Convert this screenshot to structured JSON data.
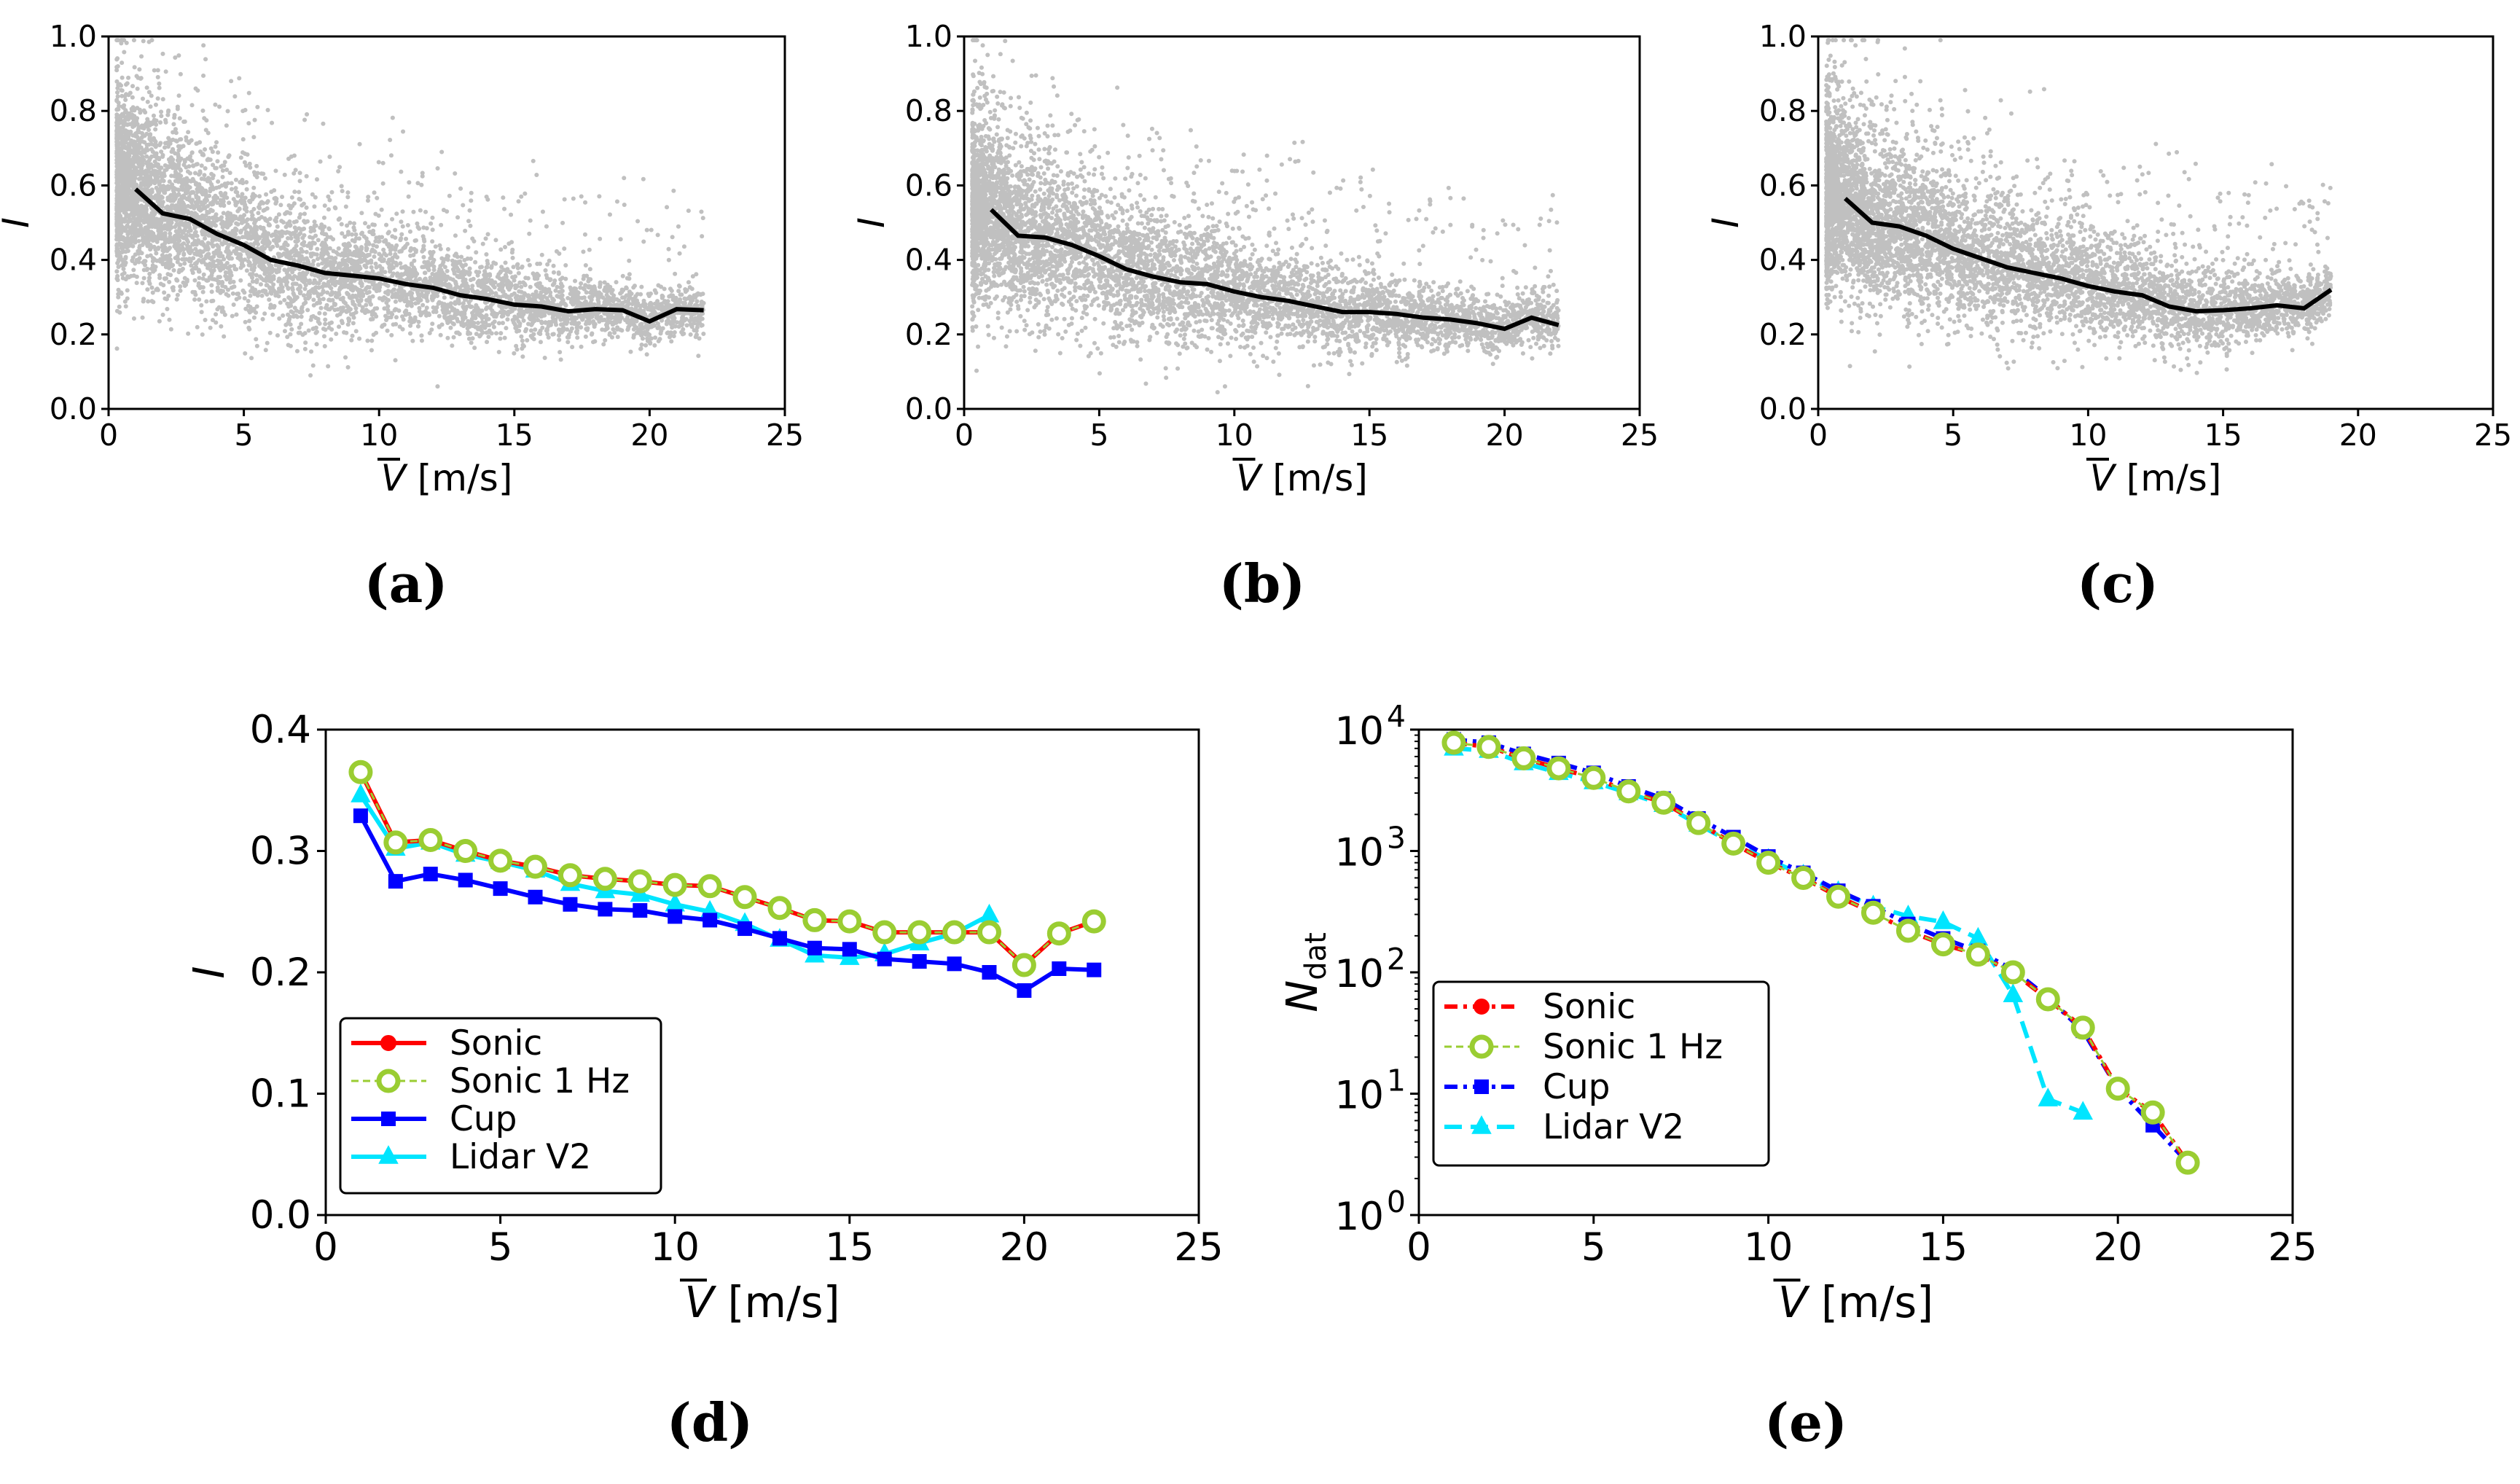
{
  "colors": {
    "scatter": "#c0c0c0",
    "mean_line": "#000000",
    "Sonic": "#ff0000",
    "Sonic 1 Hz": "#9acd32",
    "Cup": "#0000ff",
    "Lidar V2": "#00e5ff"
  },
  "chart_data": [
    {
      "id": "a",
      "type": "scatter",
      "caption": "(a)",
      "xlabel_var": "V",
      "xlabel_unit": "[m/s]",
      "ylabel": "I",
      "xlim": [
        0,
        25
      ],
      "ylim": [
        0,
        1
      ],
      "xticks": [
        0,
        5,
        10,
        15,
        20,
        25
      ],
      "yticks": [
        0.0,
        0.2,
        0.4,
        0.6,
        0.8,
        1.0
      ],
      "ytick_labels": [
        "0.0",
        "0.2",
        "0.4",
        "0.6",
        "0.8",
        "1.0"
      ],
      "scatter_extent": {
        "x_max": 22
      },
      "mean_line": {
        "x": [
          1,
          2,
          3,
          4,
          5,
          6,
          7,
          8,
          9,
          10,
          11,
          12,
          13,
          14,
          15,
          16,
          17,
          18,
          19,
          20,
          21,
          22
        ],
        "y": [
          0.59,
          0.525,
          0.51,
          0.47,
          0.44,
          0.4,
          0.385,
          0.365,
          0.358,
          0.35,
          0.335,
          0.325,
          0.305,
          0.295,
          0.28,
          0.275,
          0.262,
          0.268,
          0.265,
          0.235,
          0.268,
          0.265
        ]
      }
    },
    {
      "id": "b",
      "type": "scatter",
      "caption": "(b)",
      "xlabel_var": "V",
      "xlabel_unit": "[m/s]",
      "ylabel": "I",
      "xlim": [
        0,
        25
      ],
      "ylim": [
        0,
        1
      ],
      "xticks": [
        0,
        5,
        10,
        15,
        20,
        25
      ],
      "yticks": [
        0.0,
        0.2,
        0.4,
        0.6,
        0.8,
        1.0
      ],
      "ytick_labels": [
        "0.0",
        "0.2",
        "0.4",
        "0.6",
        "0.8",
        "1.0"
      ],
      "scatter_extent": {
        "x_max": 22
      },
      "mean_line": {
        "x": [
          1,
          2,
          3,
          4,
          5,
          6,
          7,
          8,
          9,
          10,
          11,
          12,
          13,
          14,
          15,
          16,
          17,
          18,
          19,
          20,
          21,
          22
        ],
        "y": [
          0.535,
          0.465,
          0.46,
          0.44,
          0.41,
          0.375,
          0.355,
          0.34,
          0.335,
          0.315,
          0.3,
          0.29,
          0.275,
          0.26,
          0.26,
          0.255,
          0.245,
          0.24,
          0.23,
          0.215,
          0.245,
          0.225
        ]
      }
    },
    {
      "id": "c",
      "type": "scatter",
      "caption": "(c)",
      "xlabel_var": "V",
      "xlabel_unit": "[m/s]",
      "ylabel": "I",
      "xlim": [
        0,
        25
      ],
      "ylim": [
        0,
        1
      ],
      "xticks": [
        0,
        5,
        10,
        15,
        20,
        25
      ],
      "yticks": [
        0.0,
        0.2,
        0.4,
        0.6,
        0.8,
        1.0
      ],
      "ytick_labels": [
        "0.0",
        "0.2",
        "0.4",
        "0.6",
        "0.8",
        "1.0"
      ],
      "scatter_extent": {
        "x_max": 19
      },
      "mean_line": {
        "x": [
          1,
          2,
          3,
          4,
          5,
          6,
          7,
          8,
          9,
          10,
          11,
          12,
          13,
          14,
          15,
          16,
          17,
          18,
          19
        ],
        "y": [
          0.565,
          0.5,
          0.49,
          0.465,
          0.43,
          0.405,
          0.38,
          0.365,
          0.35,
          0.33,
          0.315,
          0.305,
          0.275,
          0.262,
          0.265,
          0.27,
          0.278,
          0.27,
          0.32
        ]
      }
    },
    {
      "id": "d",
      "type": "line",
      "caption": "(d)",
      "xlabel_var": "V",
      "xlabel_unit": "[m/s]",
      "ylabel": "I",
      "xlim": [
        0,
        25
      ],
      "ylim": [
        0,
        0.4
      ],
      "xticks": [
        0,
        5,
        10,
        15,
        20,
        25
      ],
      "yticks": [
        0.0,
        0.1,
        0.2,
        0.3,
        0.4
      ],
      "ytick_labels": [
        "0.0",
        "0.1",
        "0.2",
        "0.3",
        "0.4"
      ],
      "legend_position": "lower-left",
      "series": [
        {
          "name": "Sonic",
          "x": [
            1,
            2,
            3,
            4,
            5,
            6,
            7,
            8,
            9,
            10,
            11,
            12,
            13,
            14,
            15,
            16,
            17,
            18,
            19,
            20,
            21,
            22
          ],
          "y": [
            0.365,
            0.307,
            0.309,
            0.3,
            0.292,
            0.287,
            0.28,
            0.277,
            0.275,
            0.272,
            0.271,
            0.262,
            0.253,
            0.243,
            0.242,
            0.233,
            0.233,
            0.233,
            0.233,
            0.206,
            0.232,
            0.242
          ]
        },
        {
          "name": "Sonic 1 Hz",
          "x": [
            1,
            2,
            3,
            4,
            5,
            6,
            7,
            8,
            9,
            10,
            11,
            12,
            13,
            14,
            15,
            16,
            17,
            18,
            19,
            20,
            21,
            22
          ],
          "y": [
            0.365,
            0.307,
            0.309,
            0.3,
            0.292,
            0.287,
            0.28,
            0.277,
            0.275,
            0.272,
            0.271,
            0.262,
            0.253,
            0.243,
            0.242,
            0.233,
            0.233,
            0.233,
            0.233,
            0.206,
            0.232,
            0.242
          ]
        },
        {
          "name": "Cup",
          "x": [
            1,
            2,
            3,
            4,
            5,
            6,
            7,
            8,
            9,
            10,
            11,
            12,
            13,
            14,
            15,
            16,
            17,
            18,
            19,
            20,
            21,
            22
          ],
          "y": [
            0.329,
            0.275,
            0.281,
            0.276,
            0.269,
            0.262,
            0.256,
            0.252,
            0.251,
            0.246,
            0.243,
            0.236,
            0.228,
            0.22,
            0.219,
            0.211,
            0.209,
            0.207,
            0.2,
            0.185,
            0.203,
            0.202
          ]
        },
        {
          "name": "Lidar V2",
          "x": [
            1,
            2,
            3,
            4,
            5,
            6,
            7,
            8,
            9,
            10,
            11,
            12,
            13,
            14,
            15,
            16,
            17,
            18,
            19
          ],
          "y": [
            0.346,
            0.302,
            0.307,
            0.297,
            0.291,
            0.284,
            0.273,
            0.267,
            0.264,
            0.256,
            0.25,
            0.24,
            0.227,
            0.214,
            0.212,
            0.215,
            0.224,
            0.232,
            0.247
          ]
        }
      ]
    },
    {
      "id": "e",
      "type": "line",
      "yscale": "log",
      "caption": "(e)",
      "xlabel_var": "V",
      "xlabel_unit": "[m/s]",
      "ylabel_var": "N",
      "ylabel_sub": "dat",
      "xlim": [
        0,
        25
      ],
      "ylim": [
        1,
        10000
      ],
      "xticks": [
        0,
        5,
        10,
        15,
        20,
        25
      ],
      "yticks": [
        1,
        10,
        100,
        1000,
        10000
      ],
      "ytick_mantissa": "10",
      "ytick_exponents": [
        "0",
        "1",
        "2",
        "3",
        "4"
      ],
      "legend_position": "lower-left",
      "series": [
        {
          "name": "Sonic",
          "x": [
            1,
            2,
            3,
            4,
            5,
            6,
            7,
            8,
            9,
            10,
            11,
            12,
            13,
            14,
            15,
            16,
            17,
            18,
            19,
            20,
            21,
            22
          ],
          "y": [
            7800,
            7200,
            5800,
            4800,
            4000,
            3100,
            2500,
            1700,
            1150,
            800,
            600,
            420,
            310,
            220,
            170,
            140,
            100,
            60,
            35,
            11,
            7,
            2.7
          ]
        },
        {
          "name": "Sonic 1 Hz",
          "x": [
            1,
            2,
            3,
            4,
            5,
            6,
            7,
            8,
            9,
            10,
            11,
            12,
            13,
            14,
            15,
            16,
            17,
            18,
            19,
            20,
            21,
            22
          ],
          "y": [
            7800,
            7200,
            5800,
            4800,
            4000,
            3100,
            2500,
            1700,
            1150,
            800,
            600,
            420,
            310,
            220,
            170,
            140,
            100,
            60,
            35,
            11,
            7,
            2.7
          ]
        },
        {
          "name": "Cup",
          "x": [
            1,
            2,
            3,
            4,
            5,
            6,
            7,
            8,
            9,
            10,
            11,
            12,
            13,
            14,
            15,
            16,
            17,
            18,
            19,
            20,
            21,
            22
          ],
          "y": [
            8300,
            7800,
            6300,
            5300,
            4400,
            3400,
            2700,
            1850,
            1300,
            900,
            660,
            470,
            350,
            250,
            190,
            150,
            105,
            62,
            33,
            11,
            5.5,
            2.7
          ]
        },
        {
          "name": "Lidar V2",
          "x": [
            1,
            2,
            3,
            4,
            5,
            6,
            7,
            8,
            9,
            10,
            11,
            12,
            13,
            14,
            15,
            16,
            17,
            18,
            19
          ],
          "y": [
            7000,
            6700,
            5300,
            4400,
            3700,
            3000,
            2400,
            1650,
            1150,
            850,
            630,
            460,
            350,
            290,
            260,
            190,
            65,
            9,
            7
          ]
        }
      ]
    }
  ]
}
